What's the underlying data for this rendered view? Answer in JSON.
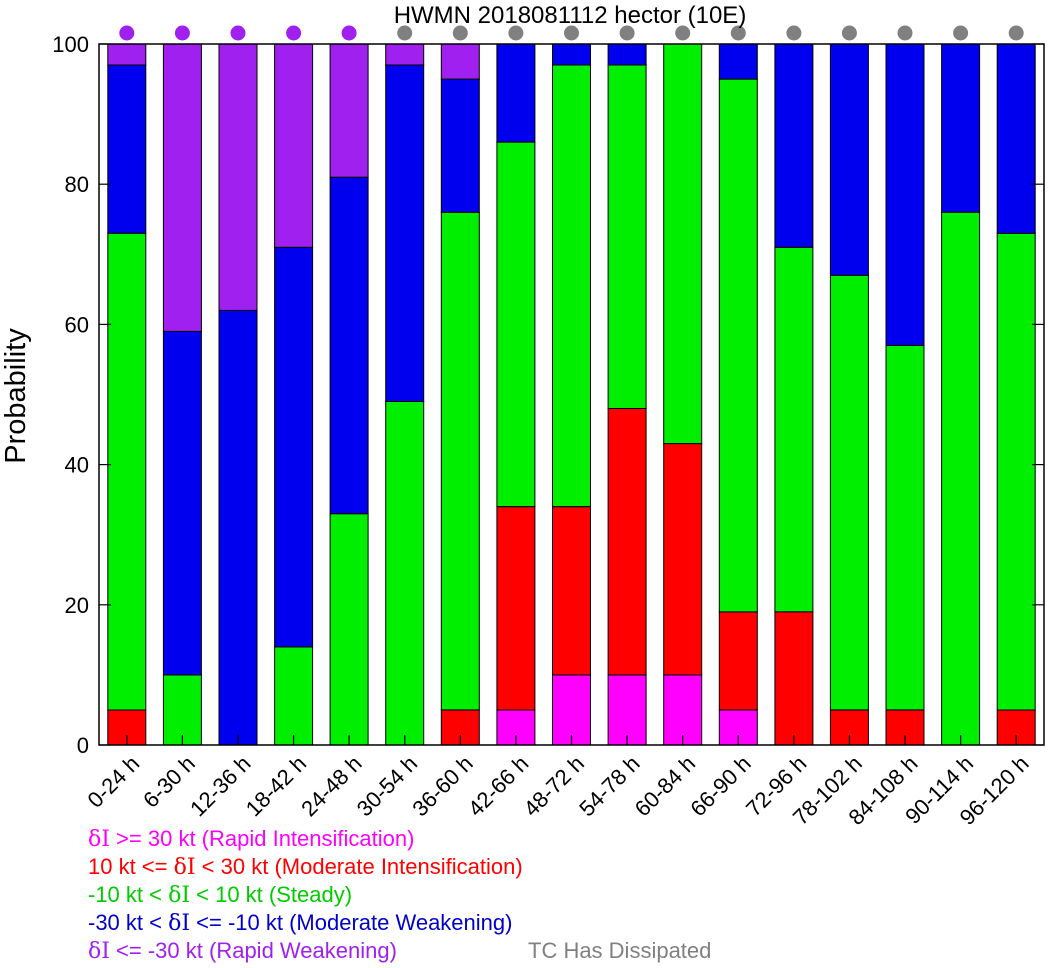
{
  "chart_data": {
    "type": "bar",
    "stacked": true,
    "title": "HWMN 2018081112 hector (10E)",
    "xlabel": "",
    "ylabel": "Probability",
    "ylim": [
      0,
      100
    ],
    "yticks": [
      0,
      20,
      40,
      60,
      80,
      100
    ],
    "grid": false,
    "categories": [
      "0-24 h",
      "6-30 h",
      "12-36 h",
      "18-42 h",
      "24-48 h",
      "30-54 h",
      "36-60 h",
      "42-66 h",
      "48-72 h",
      "54-78 h",
      "60-84 h",
      "66-90 h",
      "72-96 h",
      "78-102 h",
      "84-108 h",
      "90-114 h",
      "96-120 h"
    ],
    "series": [
      {
        "key": "ri",
        "color": "#ff00ff",
        "values": [
          0,
          0,
          0,
          0,
          0,
          0,
          0,
          5,
          10,
          10,
          10,
          5,
          0,
          0,
          0,
          0,
          0
        ]
      },
      {
        "key": "mi",
        "color": "#ff0000",
        "values": [
          5,
          0,
          0,
          0,
          0,
          0,
          5,
          29,
          24,
          38,
          33,
          14,
          19,
          5,
          5,
          0,
          5
        ]
      },
      {
        "key": "st",
        "color": "#00ee00",
        "values": [
          68,
          10,
          0,
          14,
          33,
          49,
          71,
          52,
          63,
          49,
          57,
          76,
          52,
          62,
          52,
          76,
          68
        ]
      },
      {
        "key": "mw",
        "color": "#0000ee",
        "values": [
          24,
          49,
          62,
          57,
          48,
          48,
          19,
          14,
          3,
          3,
          0,
          5,
          29,
          33,
          43,
          24,
          27
        ]
      },
      {
        "key": "rw",
        "color": "#a020f0",
        "values": [
          3,
          41,
          38,
          29,
          19,
          3,
          5,
          0,
          0,
          0,
          0,
          0,
          0,
          0,
          0,
          0,
          0
        ]
      }
    ],
    "status_dots": [
      "purple",
      "purple",
      "purple",
      "purple",
      "purple",
      "gray",
      "gray",
      "gray",
      "gray",
      "gray",
      "gray",
      "gray",
      "gray",
      "gray",
      "gray",
      "gray",
      "gray"
    ],
    "status_colors": {
      "purple": "#a020f0",
      "gray": "#808080"
    },
    "legend_placement": "bottom-left",
    "legend": [
      {
        "delta": "δI",
        "text": " >= 30 kt (Rapid Intensification)",
        "color": "#ff00ff"
      },
      {
        "prefix": "10 kt <= ",
        "delta": "δI",
        "text": " < 30 kt (Moderate Intensification)",
        "color": "#ff0000"
      },
      {
        "prefix": "-10 kt < ",
        "delta": "δI",
        "text": " < 10 kt (Steady)",
        "color": "#00cc00"
      },
      {
        "prefix": "-30 kt < ",
        "delta": "δI",
        "text": " <= -10 kt (Moderate Weakening)",
        "color": "#0000cc"
      },
      {
        "delta": "δI",
        "text": " <= -30 kt (Rapid Weakening)",
        "color": "#a020f0"
      }
    ],
    "dissipated_note": {
      "text": "TC Has Dissipated",
      "color": "#808080"
    }
  }
}
